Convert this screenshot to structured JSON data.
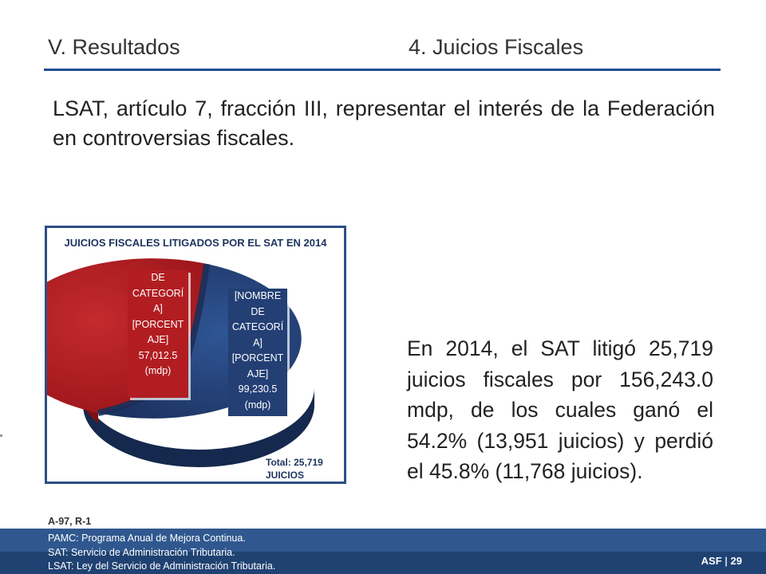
{
  "header": {
    "section": "V. Resultados",
    "topic": "4. Juicios Fiscales"
  },
  "intro": "LSAT, artículo 7, fracción III, representar el interés de la Federación en controversias fiscales.",
  "chart_data": {
    "type": "pie",
    "title": "JUICIOS FISCALES LITIGADOS POR EL SAT EN 2014",
    "slices": [
      {
        "label_lines": [
          "DE",
          "CATEGORÍ",
          "A]",
          "[PORCENT",
          "AJE]",
          "57,012.5",
          "(mdp)"
        ],
        "value": 57012.5,
        "color": "#b21d22"
      },
      {
        "label_lines": [
          "[NOMBRE",
          "DE",
          "CATEGORÍ",
          "A]",
          "[PORCENT",
          "AJE]",
          "99,230.5",
          "(mdp)"
        ],
        "value": 99230.5,
        "color": "#233f74"
      }
    ],
    "total_lines": [
      "Total: 25,719",
      "JUICIOS"
    ]
  },
  "body_text": "En 2014, el SAT litigó 25,719 juicios fiscales por 156,243.0 mdp, de los cuales ganó el 54.2% (13,951 juicios) y perdió el 45.8% (11,768 juicios).",
  "reference": "A-97, R-1",
  "footnotes": [
    "PAMC: Programa Anual de Mejora Continua.",
    "SAT: Servicio de Administración Tributaria.",
    "LSAT: Ley del Servicio de Administración Tributaria."
  ],
  "footer": {
    "org": "ASF",
    "separator": "|",
    "page": "29"
  },
  "colors": {
    "accent": "#1f4e91",
    "red_slice": "#b21d22",
    "blue_slice": "#233f74",
    "footer_bg": "#30588f"
  }
}
